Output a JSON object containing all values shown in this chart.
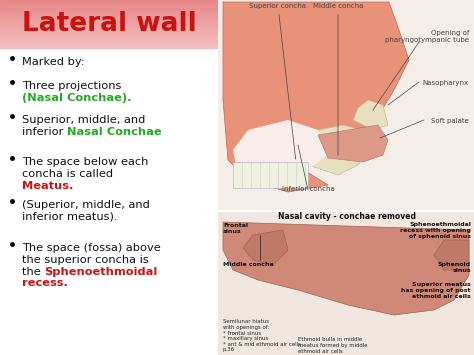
{
  "title": "Lateral wall",
  "title_color": "#cc1111",
  "title_bg_top": "#f4c0c0",
  "title_bg_bottom": "#e88888",
  "background_color": "#ffffff",
  "bullet_points": [
    {
      "parts": [
        {
          "text": "Marked by:",
          "color": "#111111",
          "bold": false
        }
      ]
    },
    {
      "parts": [
        {
          "text": "Three projections",
          "color": "#111111",
          "bold": false
        },
        {
          "text": "\n(Nasal Conchae).",
          "color": "#22aa22",
          "bold": true
        }
      ]
    },
    {
      "parts": [
        {
          "text": "Superior, middle, and\ninferior ",
          "color": "#111111",
          "bold": false
        },
        {
          "text": "Nasal Conchae",
          "color": "#22aa22",
          "bold": true
        }
      ]
    },
    {
      "parts": [
        {
          "text": "The space below each\nconcha is called\n",
          "color": "#111111",
          "bold": false
        },
        {
          "text": "Meatus.",
          "color": "#cc1111",
          "bold": true
        }
      ]
    },
    {
      "parts": [
        {
          "text": "(Superior, middle, and\ninferior meatus).",
          "color": "#111111",
          "bold": false
        }
      ]
    },
    {
      "parts": [
        {
          "text": "The space (fossa) above\nthe superior concha is\nthe ",
          "color": "#111111",
          "bold": false
        },
        {
          "text": "Sphenoethmoidal\nrecess.",
          "color": "#cc1111",
          "bold": true
        }
      ]
    }
  ],
  "top_annotations": {
    "superior_concha": "Superior concha",
    "middle_concha": "Middle concha",
    "opening": "Opening of\npharyngotympanic tube",
    "nasopharynx": "Nasopharynx",
    "soft_palate": "Soft palate",
    "inferior_concha": "Inferior concha"
  },
  "bottom_label": "Nasal cavity - conchae removed",
  "bottom_left_annotations": {
    "frontal_sinus": "Frontal\nsinus",
    "middle_concha": "Middle concha",
    "semilunar": "Semilunar hiatus\nwith openings of:\n* frontal sinus\n* maxillary sinus\n* ant & mid ethmoid air cells",
    "page": "p.36"
  },
  "bottom_right_annotations": {
    "sphenoethmoidal": "Sphenoethmoidal\nrecess with opening\nof sphenoid sinus",
    "sphenoid_sinus": "Sphenoid\nsinus",
    "superior_meatus": "Superior meatus\nhas opening of post\nethmoid air cells",
    "ethmoid_bulla": "Ethmoid bulla in middle\nmeatus formed by middle\nethmoid air cells"
  },
  "anatomy_pink": "#e8927a",
  "anatomy_bone": "#e8dfc0",
  "anatomy_dark": "#c87060",
  "anatomy_teeth": "#f0f0e0",
  "anatomy_bg": "#f5ede8"
}
